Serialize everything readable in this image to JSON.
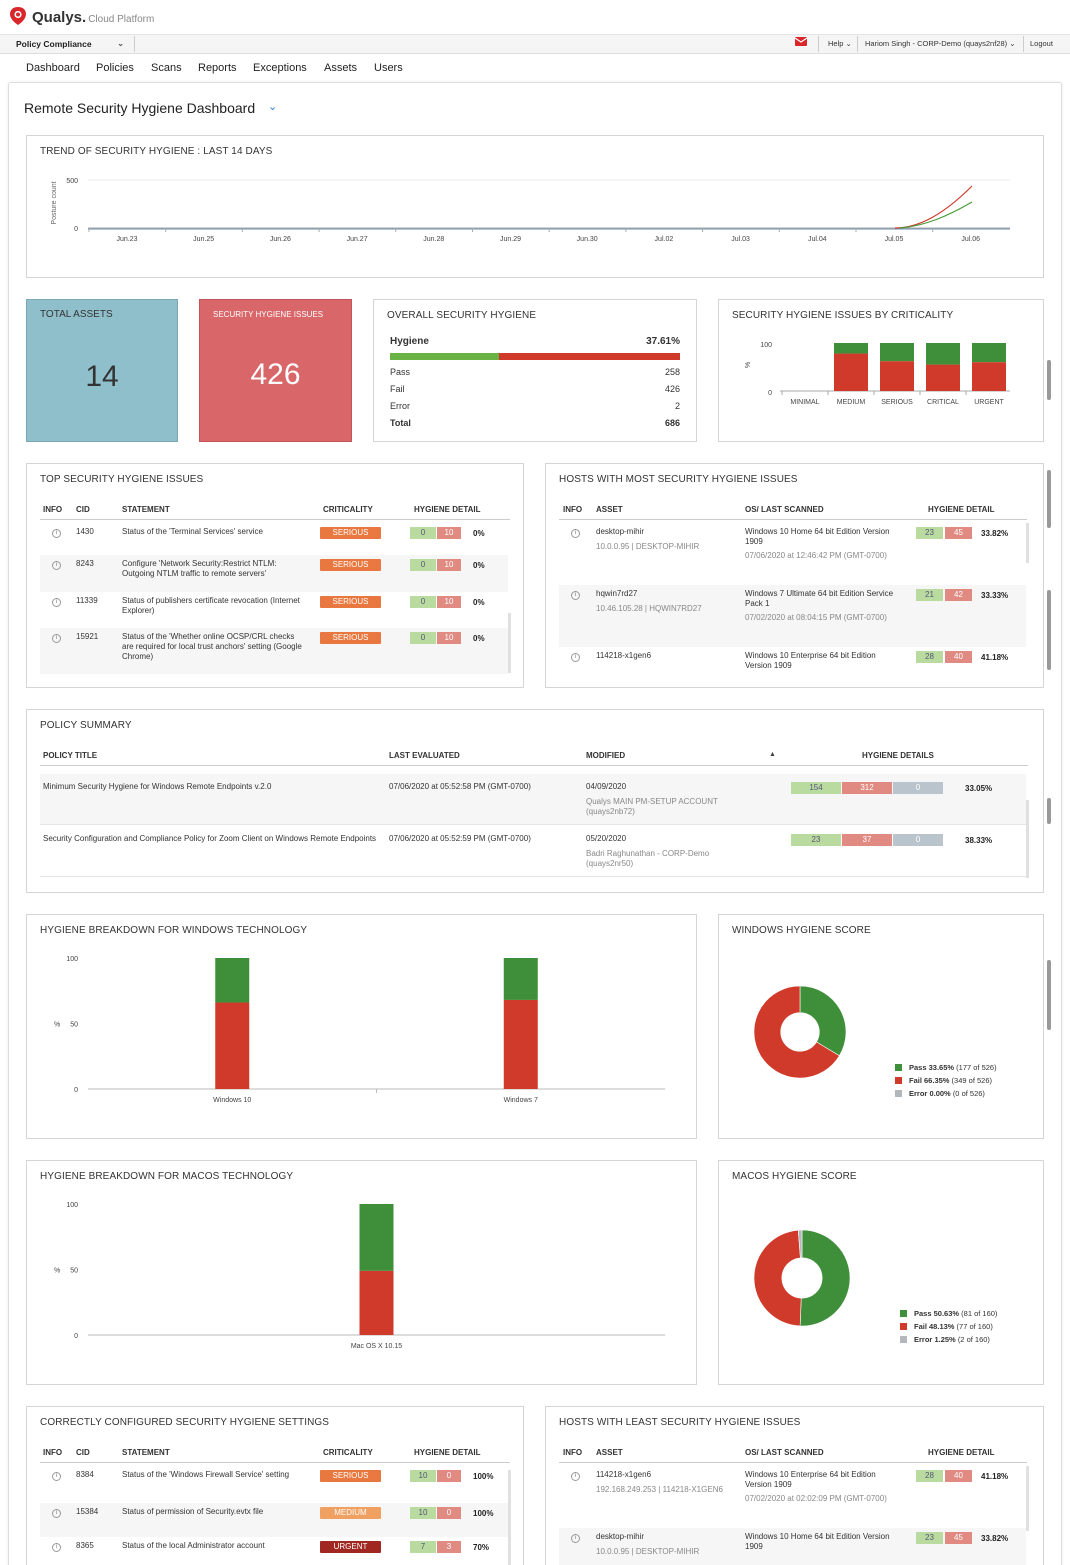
{
  "brand": {
    "name": "Qualys.",
    "sub": "Cloud Platform"
  },
  "module": "Policy Compliance",
  "topbar": {
    "help": "Help",
    "user": "Hariom Singh - CORP-Demo (quays2nf28)",
    "logout": "Logout"
  },
  "nav": [
    "Dashboard",
    "Policies",
    "Scans",
    "Reports",
    "Exceptions",
    "Assets",
    "Users"
  ],
  "dashboard_title": "Remote Security Hygiene Dashboard",
  "trend": {
    "title": "TREND OF SECURITY HYGIENE : LAST 14 DAYS",
    "ylabel": "Posture count",
    "yticks": [
      "500",
      "0"
    ],
    "xticks": [
      "Jun.23",
      "Jun.25",
      "Jun.26",
      "Jun.27",
      "Jun.28",
      "Jun.29",
      "Jun.30",
      "Jul.02",
      "Jul.03",
      "Jul.04",
      "Jul.05",
      "Jul.06"
    ]
  },
  "total_assets": {
    "label": "TOTAL ASSETS",
    "value": "14"
  },
  "hygiene_issues": {
    "label": "SECURITY HYGIENE ISSUES",
    "value": "426"
  },
  "overall": {
    "title": "OVERALL SECURITY HYGIENE",
    "hygiene_label": "Hygiene",
    "hygiene_pct": "37.61%",
    "hygiene_fraction": 0.3761,
    "rows": [
      {
        "label": "Pass",
        "value": "258"
      },
      {
        "label": "Fail",
        "value": "426"
      },
      {
        "label": "Error",
        "value": "2"
      },
      {
        "label": "Total",
        "value": "686"
      }
    ]
  },
  "criticality": {
    "title": "SECURITY HYGIENE ISSUES BY CRITICALITY",
    "yticks": [
      "100",
      "0"
    ],
    "ylabel": "%",
    "categories": [
      "MINIMAL",
      "MEDIUM",
      "SERIOUS",
      "CRITICAL",
      "URGENT"
    ]
  },
  "top_issues": {
    "title": "TOP SECURITY HYGIENE ISSUES",
    "headers": [
      "INFO",
      "CID",
      "STATEMENT",
      "CRITICALITY",
      "HYGIENE DETAIL"
    ],
    "rows": [
      {
        "cid": "1430",
        "statement": "Status of the 'Terminal Services' service",
        "criticality": "SERIOUS",
        "pass": "0",
        "fail": "10",
        "pct": "0%"
      },
      {
        "cid": "8243",
        "statement": "Configure 'Network Security:Restrict NTLM: Outgoing NTLM traffic to remote servers'",
        "criticality": "SERIOUS",
        "pass": "0",
        "fail": "10",
        "pct": "0%"
      },
      {
        "cid": "11339",
        "statement": "Status of publishers certificate revocation (Internet Explorer)",
        "criticality": "SERIOUS",
        "pass": "0",
        "fail": "10",
        "pct": "0%"
      },
      {
        "cid": "15921",
        "statement": "Status of the 'Whether online OCSP/CRL checks are required for local trust anchors' setting (Google Chrome)",
        "criticality": "SERIOUS",
        "pass": "0",
        "fail": "10",
        "pct": "0%"
      }
    ]
  },
  "most_hosts": {
    "title": "HOSTS WITH MOST SECURITY HYGIENE ISSUES",
    "headers": [
      "INFO",
      "ASSET",
      "OS/ LAST SCANNED",
      "HYGIENE DETAIL"
    ],
    "rows": [
      {
        "asset": "desktop-mihir",
        "ip": "10.0.0.95 | DESKTOP-MIHIR",
        "os": "Windows 10 Home 64 bit Edition Version 1909",
        "scanned": "07/06/2020 at 12:46:42 PM (GMT-0700)",
        "pass": "23",
        "fail": "45",
        "pct": "33.82%"
      },
      {
        "asset": "hqwin7rd27",
        "ip": "10.46.105.28 | HQWIN7RD27",
        "os": "Windows 7 Ultimate 64 bit Edition Service Pack 1",
        "scanned": "07/02/2020 at 08:04:15 PM (GMT-0700)",
        "pass": "21",
        "fail": "42",
        "pct": "33.33%"
      },
      {
        "asset": "114218-x1gen6",
        "ip": "",
        "os": "Windows 10 Enterprise 64 bit Edition Version 1909",
        "scanned": "",
        "pass": "28",
        "fail": "40",
        "pct": "41.18%"
      }
    ]
  },
  "policy": {
    "title": "POLICY SUMMARY",
    "headers": [
      "POLICY TITLE",
      "LAST EVALUATED",
      "MODIFIED",
      "HYGIENE DETAILS"
    ],
    "rows": [
      {
        "title": "Minimum Security Hygiene for Windows Remote Endpoints v.2.0",
        "evaluated": "07/06/2020 at 05:52:58 PM (GMT-0700)",
        "modified": "04/09/2020",
        "by": "Qualys MAIN PM-SETUP ACCOUNT (quays2nb72)",
        "pass": "154",
        "fail": "312",
        "error": "0",
        "pct": "33.05%"
      },
      {
        "title": "Security Configuration and Compliance Policy for Zoom Client on Windows Remote Endpoints",
        "evaluated": "07/06/2020 at 05:52:59 PM (GMT-0700)",
        "modified": "05/20/2020",
        "by": "Badri Raghunathan - CORP-Demo (quays2nr50)",
        "pass": "23",
        "fail": "37",
        "error": "0",
        "pct": "38.33%"
      }
    ]
  },
  "chart_data": [
    {
      "type": "bar",
      "title": "HYGIENE BREAKDOWN FOR WINDOWS TECHNOLOGY",
      "categories": [
        "Windows 10",
        "Windows 7"
      ],
      "ylabel": "%",
      "ylim": [
        0,
        100
      ],
      "yticks": [
        "100",
        "50",
        "0"
      ],
      "series": [
        {
          "values": [
            66,
            68
          ],
          "color": "#d03a2a"
        },
        {
          "values": [
            34,
            32
          ],
          "color": "#3f8f3a"
        }
      ]
    },
    {
      "type": "pie",
      "title": "WINDOWS HYGIENE SCORE",
      "slices": [
        {
          "label": "Pass",
          "pct": "33.65%",
          "detail": "(177 of 526)",
          "value": 33.65,
          "color": "#3f8f3a"
        },
        {
          "label": "Fail",
          "pct": "66.35%",
          "detail": "(349 of 526)",
          "value": 66.35,
          "color": "#d03a2a"
        },
        {
          "label": "Error",
          "pct": "0.00%",
          "detail": "(0 of 526)",
          "value": 0,
          "color": "#b3b8bc"
        }
      ]
    },
    {
      "type": "bar",
      "title": "HYGIENE BREAKDOWN FOR MACOS TECHNOLOGY",
      "categories": [
        "Mac OS X 10.15"
      ],
      "ylabel": "%",
      "ylim": [
        0,
        100
      ],
      "yticks": [
        "100",
        "50",
        "0"
      ],
      "series": [
        {
          "values": [
            49
          ],
          "color": "#d03a2a"
        },
        {
          "values": [
            51
          ],
          "color": "#3f8f3a"
        }
      ]
    },
    {
      "type": "pie",
      "title": "MACOS HYGIENE SCORE",
      "slices": [
        {
          "label": "Pass",
          "pct": "50.63%",
          "detail": "(81 of 160)",
          "value": 50.63,
          "color": "#3f8f3a"
        },
        {
          "label": "Fail",
          "pct": "48.13%",
          "detail": "(77 of 160)",
          "value": 48.13,
          "color": "#d03a2a"
        },
        {
          "label": "Error",
          "pct": "1.25%",
          "detail": "(2 of 160)",
          "value": 1.25,
          "color": "#b3b8bc"
        }
      ]
    }
  ],
  "correct": {
    "title": "CORRECTLY CONFIGURED SECURITY HYGIENE SETTINGS",
    "headers": [
      "INFO",
      "CID",
      "STATEMENT",
      "CRITICALITY",
      "HYGIENE DETAIL"
    ],
    "rows": [
      {
        "cid": "8384",
        "statement": "Status of the 'Windows Firewall Service' setting",
        "criticality": "SERIOUS",
        "pass": "10",
        "fail": "0",
        "pct": "100%"
      },
      {
        "cid": "15384",
        "statement": "Status of permission of Security.evtx file",
        "criticality": "MEDIUM",
        "pass": "10",
        "fail": "0",
        "pct": "100%"
      },
      {
        "cid": "8365",
        "statement": "Status of the local Administrator account",
        "criticality": "URGENT",
        "pass": "7",
        "fail": "3",
        "pct": "70%"
      }
    ]
  },
  "least_hosts": {
    "title": "HOSTS WITH LEAST SECURITY HYGIENE ISSUES",
    "headers": [
      "INFO",
      "ASSET",
      "OS/ LAST SCANNED",
      "HYGIENE DETAIL"
    ],
    "rows": [
      {
        "asset": "114218-x1gen6",
        "ip": "192.168.249.253 | 114218-X1GEN6",
        "os": "Windows 10 Enterprise 64 bit Edition Version 1909",
        "scanned": "07/02/2020 at 02:02:09 PM (GMT-0700)",
        "pass": "28",
        "fail": "40",
        "pct": "41.18%"
      },
      {
        "asset": "desktop-mihir",
        "ip": "10.0.0.95 | DESKTOP-MIHIR",
        "os": "Windows 10 Home 64 bit Edition Version 1909",
        "scanned": "",
        "pass": "23",
        "fail": "45",
        "pct": "33.82%"
      }
    ]
  },
  "colors": {
    "pass": "#3f8f3a",
    "fail": "#d03a2a",
    "error": "#b3b8bc",
    "teal": "#8fbfcb",
    "salmon": "#d9676a",
    "serious": "#e8783f",
    "medium": "#f0a060",
    "urgent": "#a02820",
    "accent": "#2a7fd4"
  }
}
